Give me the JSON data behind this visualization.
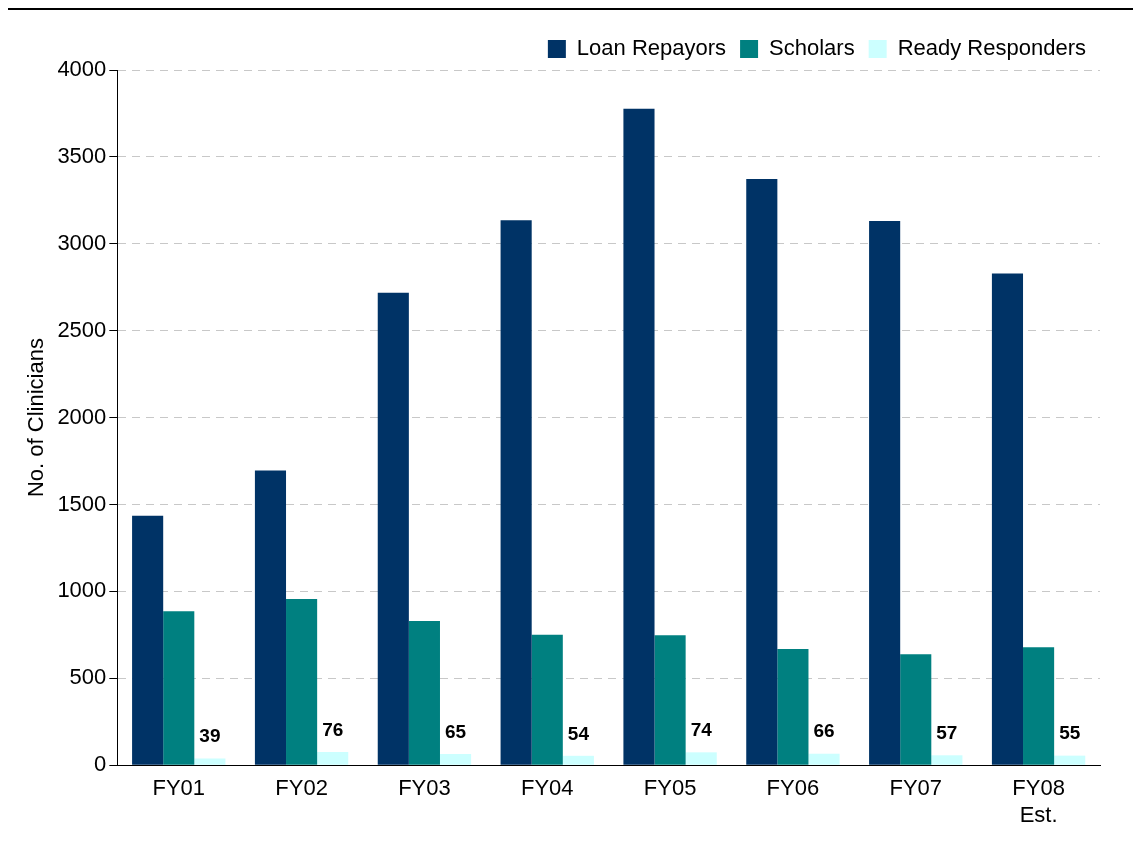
{
  "chart_data": {
    "type": "bar",
    "ylabel": "No. of Clinicians",
    "categories": [
      "FY01",
      "FY02",
      "FY03",
      "FY04",
      "FY05",
      "FY06",
      "FY07",
      "FY08 Est."
    ],
    "series": [
      {
        "name": "Loan Repayors",
        "color": "#003366",
        "values": [
          1435,
          1696,
          2719,
          3136,
          3777,
          3373,
          3131,
          2829
        ]
      },
      {
        "name": "Scholars",
        "color": "#008080",
        "values": [
          886,
          956,
          829,
          751,
          748,
          668,
          638,
          678
        ]
      },
      {
        "name": "Ready Responders",
        "color": "#ccffff",
        "values": [
          39,
          76,
          65,
          54,
          74,
          66,
          57,
          55
        ],
        "value_labels": [
          "39",
          "76",
          "65",
          "54",
          "74",
          "66",
          "57",
          "55"
        ]
      }
    ],
    "ylim": [
      0,
      4000
    ],
    "yticks": [
      0,
      500,
      1000,
      1500,
      2000,
      2500,
      3000,
      3500,
      4000
    ],
    "grid": "y",
    "legend": "top"
  }
}
